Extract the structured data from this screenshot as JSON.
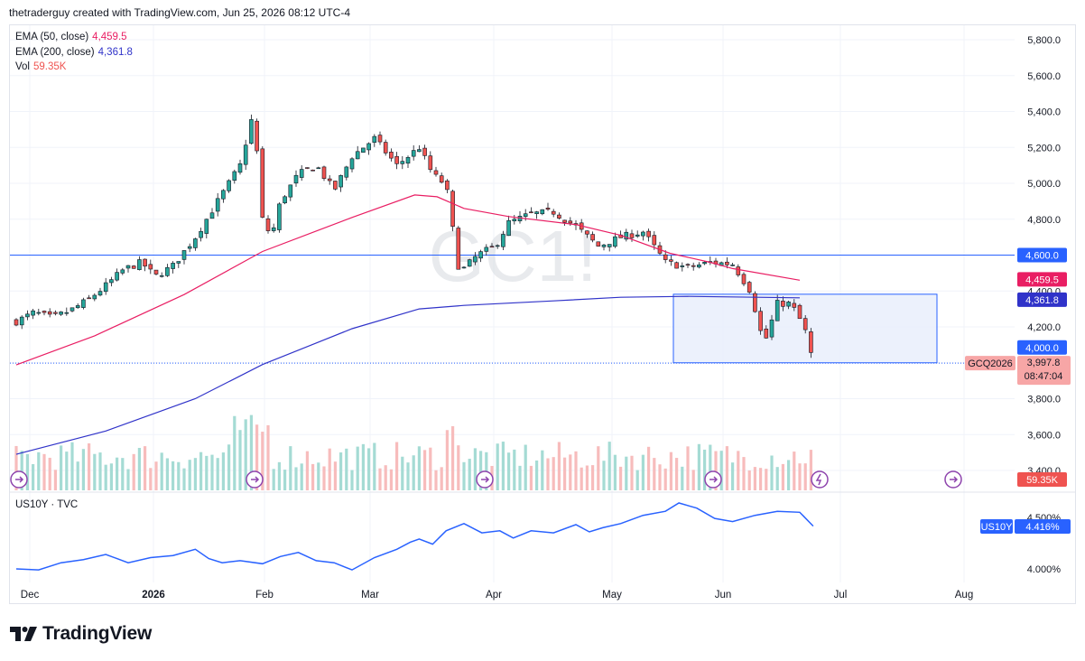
{
  "header": {
    "attribution": "thetraderguy created with TradingView.com, Jun 25, 2026 08:12 UTC-4"
  },
  "legend": {
    "ema50_label": "EMA (50, close)",
    "ema50_value": "4,459.5",
    "ema200_label": "EMA (200, close)",
    "ema200_value": "4,361.8",
    "vol_label": "Vol",
    "vol_value": "59.35K"
  },
  "watermark": "GC1!",
  "lower_pane": {
    "label": "US10Y · TVC"
  },
  "price_tags": {
    "h_line": "4,600.0",
    "ema50": "4,459.5",
    "ema200": "4,361.8",
    "rect_bottom": "4,000.0",
    "symbol": "GCQ2026",
    "last": "3,997.8",
    "countdown": "08:47:04",
    "vol": "59.35K",
    "us10y_symbol": "US10Y",
    "us10y_value": "4.416%"
  },
  "brand": {
    "name": "TradingView"
  },
  "colors": {
    "up": "#26a69a",
    "down": "#ef5350",
    "ema50": "#e91e63",
    "ema200": "#3033c9",
    "hline": "#2962ff",
    "us10y": "#2962ff",
    "rect_fill": "#e9eefc",
    "rect_stroke": "#2962ff"
  },
  "chart_data": [
    {
      "type": "candlestick",
      "symbol": "GCQ2026",
      "y_axis_ticks": [
        "5,800.0",
        "5,600.0",
        "5,400.0",
        "5,200.0",
        "5,000.0",
        "4,800.0",
        "4,600.0",
        "4,400.0",
        "4,200.0",
        "4,000.0",
        "3,800.0",
        "3,600.0",
        "3,400.0"
      ],
      "ylim": [
        3400,
        5800
      ],
      "x_axis_labels": [
        "Dec",
        "2026",
        "Feb",
        "Mar",
        "Apr",
        "May",
        "Jun",
        "Jul",
        "Aug"
      ],
      "close_path": [
        [
          0,
          4230
        ],
        [
          8,
          4280
        ],
        [
          16,
          4250
        ],
        [
          24,
          4290
        ],
        [
          32,
          4350
        ],
        [
          40,
          4430
        ],
        [
          48,
          4520
        ],
        [
          56,
          4560
        ],
        [
          62,
          4480
        ],
        [
          70,
          4540
        ],
        [
          80,
          4700
        ],
        [
          90,
          4900
        ],
        [
          100,
          5100
        ],
        [
          106,
          5400
        ],
        [
          110,
          4800
        ],
        [
          114,
          4700
        ],
        [
          118,
          4900
        ],
        [
          126,
          5050
        ],
        [
          134,
          5100
        ],
        [
          142,
          4960
        ],
        [
          150,
          5150
        ],
        [
          160,
          5250
        ],
        [
          170,
          5100
        ],
        [
          180,
          5200
        ],
        [
          186,
          5050
        ],
        [
          192,
          4990
        ],
        [
          198,
          4500
        ],
        [
          206,
          4600
        ],
        [
          214,
          4650
        ],
        [
          220,
          4780
        ],
        [
          230,
          4830
        ],
        [
          240,
          4840
        ],
        [
          250,
          4760
        ],
        [
          260,
          4650
        ],
        [
          270,
          4700
        ],
        [
          280,
          4730
        ],
        [
          290,
          4560
        ],
        [
          300,
          4530
        ],
        [
          310,
          4560
        ],
        [
          320,
          4550
        ],
        [
          328,
          4400
        ],
        [
          334,
          4100
        ],
        [
          340,
          4330
        ],
        [
          346,
          4330
        ],
        [
          352,
          4200
        ],
        [
          356,
          4000
        ]
      ],
      "ema50": [
        [
          0,
          3988
        ],
        [
          35,
          4150
        ],
        [
          75,
          4380
        ],
        [
          110,
          4620
        ],
        [
          150,
          4810
        ],
        [
          178,
          4935
        ],
        [
          188,
          4925
        ],
        [
          200,
          4860
        ],
        [
          220,
          4815
        ],
        [
          250,
          4770
        ],
        [
          270,
          4710
        ],
        [
          292,
          4610
        ],
        [
          310,
          4560
        ],
        [
          320,
          4525
        ],
        [
          350,
          4460
        ]
      ],
      "ema200": [
        [
          0,
          3490
        ],
        [
          40,
          3620
        ],
        [
          80,
          3800
        ],
        [
          110,
          3990
        ],
        [
          150,
          4190
        ],
        [
          180,
          4300
        ],
        [
          200,
          4320
        ],
        [
          240,
          4345
        ],
        [
          270,
          4365
        ],
        [
          300,
          4370
        ],
        [
          350,
          4361.8
        ]
      ],
      "h_line": 4600,
      "rectangle": {
        "y_top": 4382,
        "y_bottom": 4000
      },
      "last_price": 3997.8
    },
    {
      "type": "bar",
      "series": "Vol",
      "last_value": "59.35K"
    },
    {
      "type": "line",
      "symbol": "US10Y",
      "y_axis_ticks": [
        "4.500%",
        "4.000%"
      ],
      "last_value": "4.416%",
      "path": [
        [
          0,
          4.0
        ],
        [
          10,
          3.99
        ],
        [
          20,
          4.06
        ],
        [
          30,
          4.09
        ],
        [
          40,
          4.14
        ],
        [
          45,
          4.1
        ],
        [
          50,
          4.06
        ],
        [
          60,
          4.11
        ],
        [
          70,
          4.13
        ],
        [
          80,
          4.19
        ],
        [
          86,
          4.1
        ],
        [
          92,
          4.06
        ],
        [
          100,
          4.08
        ],
        [
          110,
          4.05
        ],
        [
          118,
          4.12
        ],
        [
          126,
          4.16
        ],
        [
          134,
          4.08
        ],
        [
          142,
          4.06
        ],
        [
          150,
          3.99
        ],
        [
          160,
          4.11
        ],
        [
          170,
          4.19
        ],
        [
          176,
          4.26
        ],
        [
          180,
          4.29
        ],
        [
          186,
          4.24
        ],
        [
          192,
          4.37
        ],
        [
          200,
          4.44
        ],
        [
          208,
          4.35
        ],
        [
          216,
          4.37
        ],
        [
          222,
          4.3
        ],
        [
          230,
          4.37
        ],
        [
          240,
          4.35
        ],
        [
          250,
          4.43
        ],
        [
          256,
          4.36
        ],
        [
          262,
          4.4
        ],
        [
          270,
          4.44
        ],
        [
          280,
          4.52
        ],
        [
          290,
          4.56
        ],
        [
          296,
          4.64
        ],
        [
          304,
          4.59
        ],
        [
          312,
          4.49
        ],
        [
          320,
          4.46
        ],
        [
          330,
          4.52
        ],
        [
          340,
          4.56
        ],
        [
          350,
          4.55
        ],
        [
          356,
          4.416
        ]
      ]
    }
  ]
}
